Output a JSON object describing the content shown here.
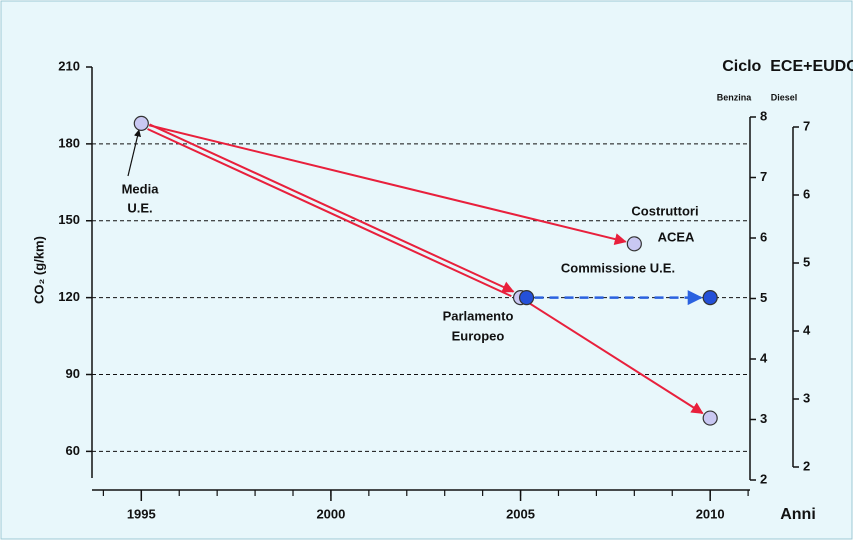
{
  "chart_data": {
    "type": "scatter",
    "title": "Ciclo  ECE+EUDC",
    "x_label": "Anni",
    "y_label": "CO₂ (g/km)",
    "xlim": [
      1993.7,
      2011.05
    ],
    "xticks": [
      1995,
      2000,
      2005,
      2010
    ],
    "xminor": [
      1994,
      1995,
      1996,
      1997,
      1998,
      1999,
      2000,
      2001,
      2002,
      2003,
      2004,
      2005,
      2006,
      2007,
      2008,
      2009,
      2010,
      2011
    ],
    "ylim": [
      50,
      210
    ],
    "yticks": [
      60,
      90,
      120,
      150,
      180,
      210
    ],
    "grid": true,
    "series": [
      {
        "color": "#c9c8f2",
        "x": [
          1995,
          2008,
          2005,
          2010
        ],
        "values": [
          188,
          141,
          120,
          73
        ]
      },
      {
        "color": "#2450d8",
        "x": [
          2005,
          2010
        ],
        "values": [
          120,
          120
        ]
      }
    ],
    "arrows": [
      {
        "series": 0,
        "from": 0,
        "to": 1,
        "color": "#e8203c"
      },
      {
        "series": 0,
        "from": 0,
        "to": 2,
        "color": "#e8203c",
        "double": true
      },
      {
        "series": 0,
        "from": 2,
        "to": 3,
        "color": "#e8203c"
      },
      {
        "series": 1,
        "from": 0,
        "to": 1,
        "color": "#2b62e0",
        "dashed": true
      }
    ],
    "benzina_axis": {
      "label": "Benzina",
      "lim": [
        2,
        8
      ],
      "ticks": [
        2,
        3,
        4,
        5,
        6,
        7,
        8
      ]
    },
    "diesel_axis": {
      "label": "Diesel",
      "lim": [
        2,
        7
      ],
      "ticks": [
        2,
        3,
        4,
        5,
        6,
        7
      ]
    },
    "annotations": {
      "media": [
        "Media",
        "U.E."
      ],
      "costruttori": [
        "Costruttori",
        "ACEA"
      ],
      "commissione": [
        "Commissione U.E."
      ],
      "parlamento": [
        "Parlamento",
        "Europeo"
      ]
    }
  }
}
